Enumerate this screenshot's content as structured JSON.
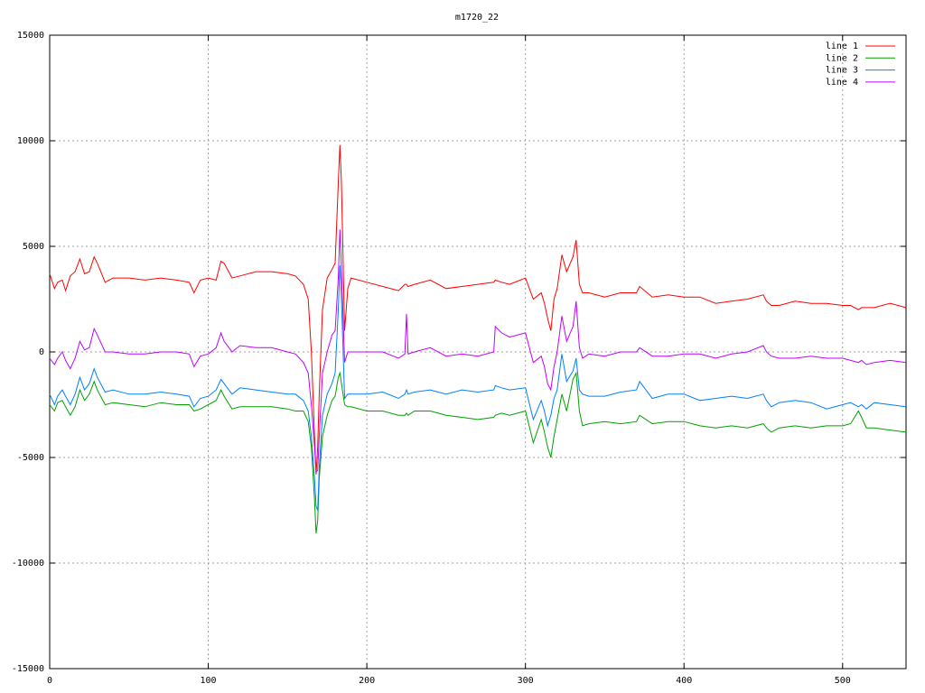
{
  "chart_data": {
    "type": "line",
    "title": "m1720_22",
    "x": [
      0,
      3,
      5,
      8,
      10,
      13,
      16,
      19,
      22,
      25,
      28,
      30,
      35,
      40,
      50,
      60,
      70,
      80,
      88,
      91,
      95,
      100,
      105,
      108,
      110,
      115,
      120,
      130,
      140,
      150,
      155,
      160,
      163,
      165,
      167,
      168,
      169,
      170,
      172,
      175,
      178,
      180,
      182,
      183,
      184,
      186,
      188,
      190,
      200,
      210,
      220,
      224,
      225,
      226,
      230,
      240,
      250,
      260,
      270,
      280,
      281,
      285,
      290,
      300,
      305,
      310,
      312,
      314,
      316,
      318,
      320,
      323,
      326,
      330,
      332,
      334,
      336,
      340,
      350,
      360,
      370,
      372,
      380,
      390,
      400,
      410,
      420,
      430,
      440,
      450,
      452,
      455,
      460,
      470,
      480,
      490,
      500,
      505,
      510,
      512,
      515,
      520,
      530,
      540
    ],
    "series": [
      {
        "name": "line 1",
        "color": "#ff0000",
        "values": [
          3700,
          3000,
          3300,
          3400,
          2900,
          3600,
          3800,
          4400,
          3700,
          3800,
          4500,
          4200,
          3300,
          3500,
          3500,
          3400,
          3500,
          3400,
          3300,
          2800,
          3400,
          3500,
          3400,
          4300,
          4200,
          3500,
          3600,
          3800,
          3800,
          3700,
          3600,
          3200,
          2500,
          0,
          -4000,
          -5800,
          -4500,
          -2000,
          2000,
          3500,
          3900,
          4200,
          8000,
          9800,
          8000,
          1000,
          3000,
          3500,
          3300,
          3100,
          2900,
          3200,
          3200,
          3100,
          3200,
          3400,
          3000,
          3100,
          3200,
          3300,
          3400,
          3300,
          3200,
          3500,
          2500,
          2800,
          2300,
          1600,
          1000,
          2500,
          3000,
          4600,
          3800,
          4500,
          5300,
          3200,
          2800,
          2800,
          2600,
          2800,
          2800,
          3100,
          2600,
          2700,
          2600,
          2600,
          2300,
          2400,
          2500,
          2700,
          2400,
          2200,
          2200,
          2400,
          2300,
          2300,
          2200,
          2200,
          2000,
          2100,
          2100,
          2100,
          2300,
          2100
        ]
      },
      {
        "name": "line 2",
        "color": "#00a000",
        "values": [
          -2500,
          -2800,
          -2400,
          -2300,
          -2600,
          -3000,
          -2600,
          -1800,
          -2300,
          -2000,
          -1400,
          -1800,
          -2500,
          -2400,
          -2500,
          -2600,
          -2400,
          -2500,
          -2500,
          -2800,
          -2700,
          -2500,
          -2300,
          -1800,
          -2100,
          -2700,
          -2600,
          -2600,
          -2600,
          -2700,
          -2800,
          -2800,
          -3300,
          -4500,
          -7000,
          -8600,
          -8000,
          -6000,
          -4000,
          -3000,
          -2300,
          -2100,
          -1200,
          -1000,
          -1500,
          -2500,
          -2600,
          -2600,
          -2800,
          -2800,
          -3000,
          -3000,
          -2900,
          -3000,
          -2800,
          -2800,
          -3000,
          -3100,
          -3200,
          -3100,
          -3000,
          -2900,
          -3000,
          -2800,
          -4300,
          -3200,
          -3800,
          -4500,
          -5000,
          -4000,
          -3200,
          -2000,
          -2800,
          -1300,
          -1000,
          -2800,
          -3500,
          -3400,
          -3300,
          -3400,
          -3300,
          -3000,
          -3400,
          -3300,
          -3300,
          -3500,
          -3600,
          -3500,
          -3600,
          -3400,
          -3600,
          -3800,
          -3600,
          -3500,
          -3600,
          -3500,
          -3500,
          -3400,
          -2800,
          -3100,
          -3600,
          -3600,
          -3700,
          -3800
        ]
      },
      {
        "name": "line 3",
        "color": "#0080ff",
        "values": [
          -2000,
          -2500,
          -2100,
          -1800,
          -2100,
          -2500,
          -2000,
          -1200,
          -1800,
          -1500,
          -800,
          -1200,
          -1900,
          -1800,
          -2000,
          -2000,
          -1900,
          -2000,
          -2100,
          -2600,
          -2200,
          -2100,
          -1800,
          -1300,
          -1500,
          -2000,
          -1700,
          -1800,
          -1900,
          -2000,
          -2000,
          -2300,
          -2800,
          -4000,
          -6000,
          -7300,
          -7500,
          -5500,
          -3000,
          -2000,
          -1500,
          -1000,
          2000,
          4100,
          2500,
          -2200,
          -2000,
          -2000,
          -2000,
          -1900,
          -2200,
          -2000,
          -1800,
          -2000,
          -1900,
          -1800,
          -2000,
          -1800,
          -1900,
          -1800,
          -1600,
          -1700,
          -1800,
          -1700,
          -3200,
          -2300,
          -2800,
          -3500,
          -3000,
          -2200,
          -1800,
          -100,
          -1400,
          -900,
          -300,
          -1800,
          -2000,
          -2100,
          -2100,
          -1900,
          -1800,
          -1400,
          -2200,
          -2000,
          -2000,
          -2300,
          -2200,
          -2100,
          -2200,
          -2000,
          -2300,
          -2600,
          -2400,
          -2300,
          -2400,
          -2700,
          -2500,
          -2400,
          -2600,
          -2500,
          -2700,
          -2400,
          -2500,
          -2600
        ]
      },
      {
        "name": "line 4",
        "color": "#c000ff",
        "values": [
          -300,
          -600,
          -300,
          0,
          -400,
          -800,
          -300,
          500,
          100,
          200,
          1100,
          800,
          0,
          0,
          -100,
          -100,
          0,
          0,
          -100,
          -700,
          -200,
          -100,
          200,
          900,
          500,
          0,
          300,
          200,
          200,
          0,
          -100,
          -500,
          -1000,
          -2500,
          -4500,
          -5700,
          -5600,
          -4000,
          -1000,
          0,
          800,
          1000,
          3500,
          5800,
          4000,
          -500,
          0,
          0,
          0,
          0,
          -300,
          -100,
          1800,
          -100,
          0,
          200,
          -200,
          -100,
          -200,
          0,
          1200,
          900,
          700,
          900,
          -500,
          -200,
          -700,
          -1500,
          -1800,
          -700,
          0,
          1700,
          500,
          1200,
          2400,
          200,
          -300,
          -100,
          -200,
          0,
          0,
          200,
          -200,
          -200,
          -100,
          -100,
          -300,
          -100,
          0,
          300,
          0,
          -200,
          -300,
          -300,
          -200,
          -300,
          -300,
          -400,
          -500,
          -400,
          -600,
          -500,
          -400,
          -500
        ]
      }
    ],
    "xlim": [
      0,
      540
    ],
    "xticks": [
      0,
      100,
      200,
      300,
      400,
      500
    ],
    "ylim": [
      -15000,
      15000
    ],
    "yticks": [
      -15000,
      -10000,
      -5000,
      0,
      5000,
      10000,
      15000
    ],
    "grid": true,
    "legend": "top-right"
  }
}
